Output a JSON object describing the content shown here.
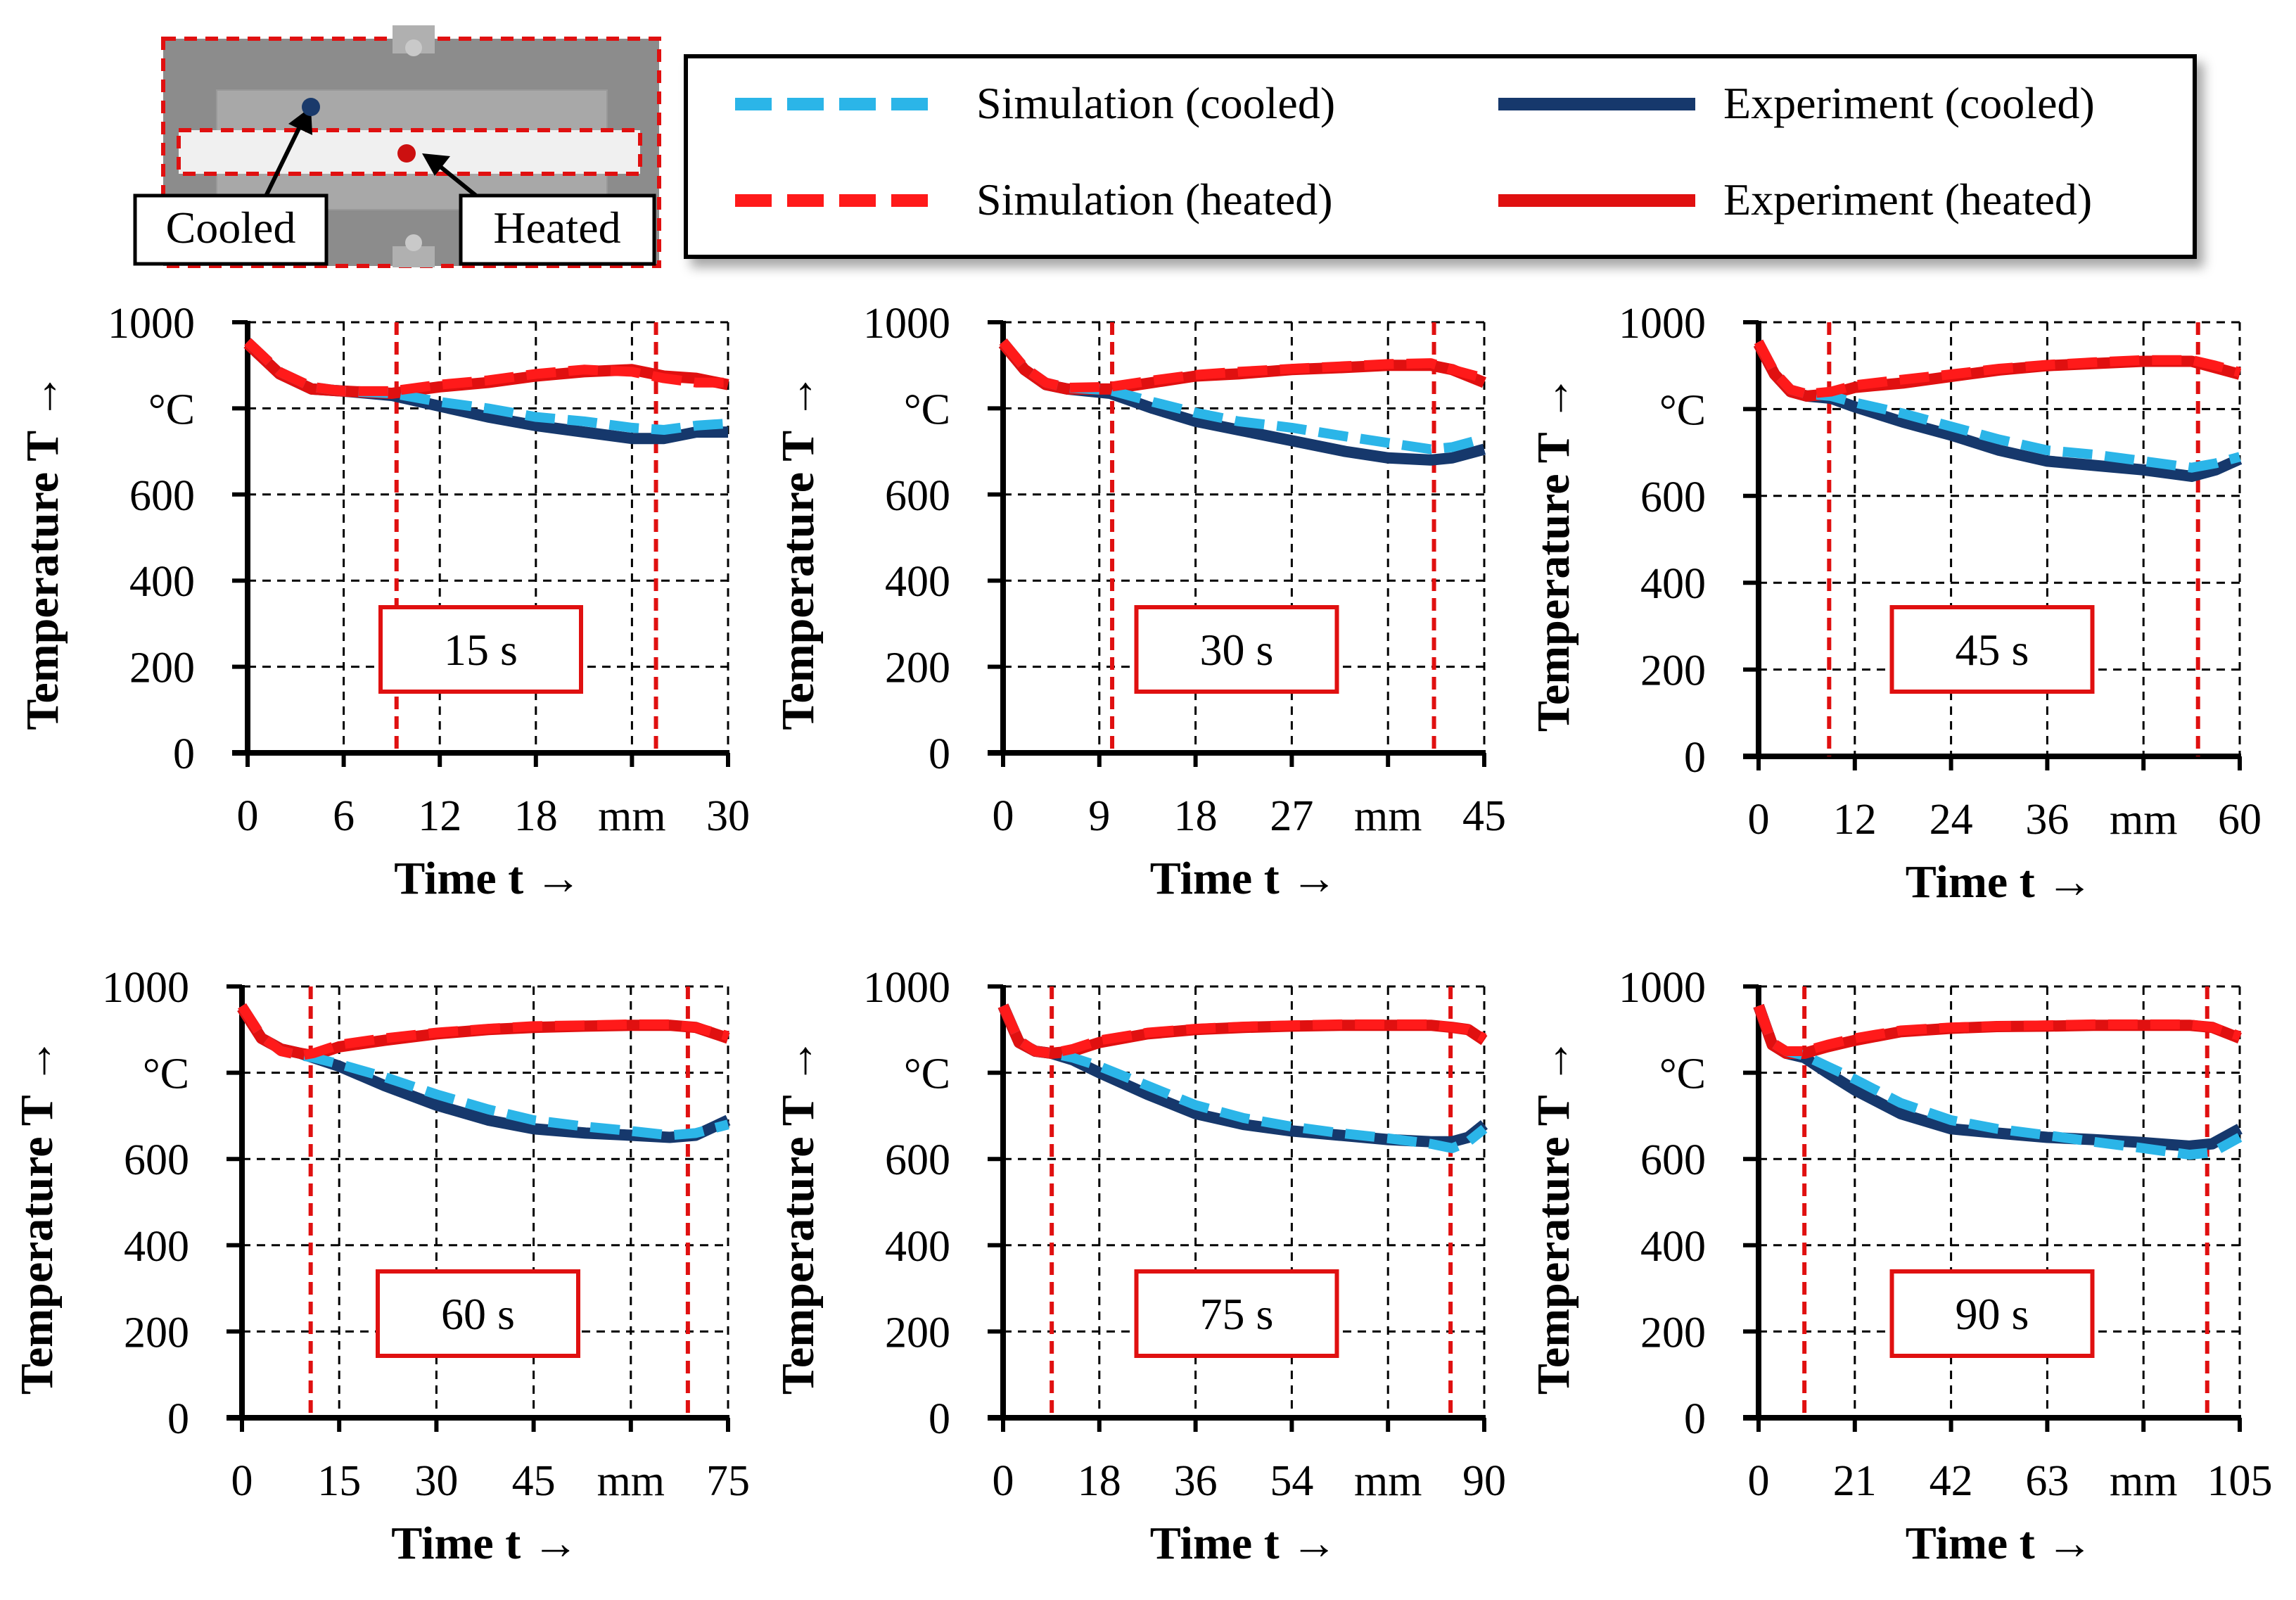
{
  "inset": {
    "cooled_label": "Cooled",
    "heated_label": "Heated",
    "cooled_color": "#1a3a6b",
    "heated_color": "#cc1010"
  },
  "legend": {
    "sim_cooled": "Simulation (cooled)",
    "exp_cooled": "Experiment (cooled)",
    "sim_heated": "Simulation (heated)",
    "exp_heated": "Experiment (heated)",
    "colors": {
      "sim_cooled": "#2bb5e8",
      "exp_cooled": "#16386c",
      "sim_heated": "#ff1a1a",
      "exp_heated": "#e01010",
      "marker": "#e01010"
    }
  },
  "chart_data": [
    {
      "type": "line",
      "title": "15 s",
      "xlabel": "Time t →",
      "ylabel": "Temperature T →",
      "y_unit": "°C",
      "x_unit": "mm",
      "xlim": [
        0,
        30
      ],
      "ylim": [
        0,
        1000
      ],
      "xticks": [
        "0",
        "6",
        "12",
        "18",
        "mm",
        "30"
      ],
      "yticks": [
        "0",
        "200",
        "400",
        "600",
        "°C",
        "1000"
      ],
      "markers": [
        9.3,
        25.5
      ],
      "series": [
        {
          "name": "Experiment (cooled)",
          "x": [
            0,
            2,
            4,
            6,
            9,
            12,
            15,
            18,
            21,
            24,
            26,
            28,
            30
          ],
          "y": [
            950,
            880,
            845,
            840,
            830,
            805,
            780,
            760,
            745,
            730,
            730,
            745,
            745
          ]
        },
        {
          "name": "Experiment (heated)",
          "x": [
            0,
            2,
            4,
            6,
            9,
            12,
            15,
            18,
            21,
            24,
            26,
            28,
            30
          ],
          "y": [
            950,
            880,
            845,
            840,
            835,
            850,
            860,
            875,
            885,
            890,
            875,
            870,
            855
          ]
        },
        {
          "name": "Simulation (cooled)",
          "x": [
            0,
            2,
            4,
            6,
            9,
            12,
            15,
            18,
            21,
            24,
            26,
            28,
            30
          ],
          "y": [
            955,
            885,
            850,
            840,
            835,
            815,
            800,
            780,
            770,
            755,
            750,
            760,
            765
          ]
        },
        {
          "name": "Simulation (heated)",
          "x": [
            0,
            2,
            4,
            6,
            9,
            12,
            15,
            18,
            21,
            24,
            26,
            28,
            30
          ],
          "y": [
            955,
            885,
            850,
            840,
            840,
            855,
            865,
            880,
            890,
            885,
            870,
            860,
            860
          ]
        }
      ]
    },
    {
      "type": "line",
      "title": "30 s",
      "xlabel": "Time t →",
      "ylabel": "Temperature T →",
      "y_unit": "°C",
      "x_unit": "mm",
      "xlim": [
        0,
        45
      ],
      "ylim": [
        0,
        1000
      ],
      "xticks": [
        "0",
        "9",
        "18",
        "27",
        "mm",
        "45"
      ],
      "yticks": [
        "0",
        "200",
        "400",
        "600",
        "°C",
        "1000"
      ],
      "markers": [
        10.2,
        40.3
      ],
      "series": [
        {
          "name": "Experiment (cooled)",
          "x": [
            0,
            2,
            4,
            6,
            10,
            14,
            18,
            22,
            27,
            32,
            36,
            40,
            42,
            45
          ],
          "y": [
            950,
            890,
            855,
            845,
            835,
            800,
            770,
            750,
            725,
            700,
            685,
            680,
            685,
            705
          ]
        },
        {
          "name": "Experiment (heated)",
          "x": [
            0,
            2,
            4,
            6,
            10,
            14,
            18,
            22,
            27,
            32,
            36,
            40,
            42,
            45
          ],
          "y": [
            950,
            890,
            855,
            845,
            845,
            860,
            875,
            880,
            890,
            895,
            900,
            900,
            890,
            860
          ]
        },
        {
          "name": "Simulation (cooled)",
          "x": [
            0,
            2,
            4,
            6,
            10,
            14,
            18,
            22,
            27,
            32,
            36,
            40,
            42,
            45
          ],
          "y": [
            955,
            895,
            860,
            848,
            842,
            815,
            790,
            770,
            755,
            735,
            720,
            705,
            710,
            730
          ]
        },
        {
          "name": "Simulation (heated)",
          "x": [
            0,
            2,
            4,
            6,
            10,
            14,
            18,
            22,
            27,
            32,
            36,
            40,
            42,
            45
          ],
          "y": [
            955,
            895,
            860,
            848,
            850,
            865,
            878,
            885,
            892,
            898,
            903,
            905,
            890,
            870
          ]
        }
      ]
    },
    {
      "type": "line",
      "title": "45 s",
      "xlabel": "Time t →",
      "ylabel": "Temperature T →",
      "y_unit": "°C",
      "x_unit": "mm",
      "xlim": [
        0,
        60
      ],
      "ylim": [
        0,
        1000
      ],
      "xticks": [
        "0",
        "12",
        "24",
        "36",
        "mm",
        "60"
      ],
      "yticks": [
        "0",
        "200",
        "400",
        "600",
        "°C",
        "1000"
      ],
      "markers": [
        8.8,
        54.8
      ],
      "series": [
        {
          "name": "Experiment (cooled)",
          "x": [
            0,
            2,
            4,
            6,
            9,
            12,
            18,
            24,
            30,
            36,
            42,
            48,
            54,
            57,
            60
          ],
          "y": [
            950,
            880,
            840,
            830,
            825,
            805,
            770,
            740,
            705,
            680,
            670,
            660,
            645,
            660,
            685
          ]
        },
        {
          "name": "Experiment (heated)",
          "x": [
            0,
            2,
            4,
            6,
            9,
            12,
            18,
            24,
            30,
            36,
            42,
            48,
            54,
            57,
            60
          ],
          "y": [
            950,
            880,
            840,
            830,
            835,
            850,
            860,
            875,
            890,
            900,
            905,
            910,
            910,
            895,
            880
          ]
        },
        {
          "name": "Simulation (cooled)",
          "x": [
            0,
            2,
            4,
            6,
            9,
            12,
            18,
            24,
            30,
            36,
            42,
            48,
            54,
            57,
            60
          ],
          "y": [
            955,
            885,
            845,
            835,
            830,
            815,
            790,
            760,
            730,
            705,
            695,
            680,
            665,
            675,
            690
          ]
        },
        {
          "name": "Simulation (heated)",
          "x": [
            0,
            2,
            4,
            6,
            9,
            12,
            18,
            24,
            30,
            36,
            42,
            48,
            54,
            57,
            60
          ],
          "y": [
            955,
            885,
            845,
            835,
            840,
            855,
            868,
            880,
            893,
            902,
            908,
            913,
            913,
            900,
            885
          ]
        }
      ]
    },
    {
      "type": "line",
      "title": "60 s",
      "xlabel": "Time t →",
      "ylabel": "Temperature T →",
      "y_unit": "°C",
      "x_unit": "mm",
      "xlim": [
        0,
        75
      ],
      "ylim": [
        0,
        1000
      ],
      "xticks": [
        "0",
        "15",
        "30",
        "45",
        "mm",
        "75"
      ],
      "yticks": [
        "0",
        "200",
        "400",
        "600",
        "°C",
        "1000"
      ],
      "markers": [
        10.6,
        68.8
      ],
      "series": [
        {
          "name": "Experiment (cooled)",
          "x": [
            0,
            3,
            6,
            9,
            11,
            15,
            22,
            30,
            38,
            45,
            53,
            60,
            66,
            70,
            75
          ],
          "y": [
            950,
            880,
            855,
            845,
            835,
            815,
            770,
            725,
            690,
            670,
            660,
            655,
            650,
            655,
            690
          ]
        },
        {
          "name": "Experiment (heated)",
          "x": [
            0,
            3,
            6,
            9,
            11,
            15,
            22,
            30,
            38,
            45,
            53,
            60,
            66,
            70,
            75
          ],
          "y": [
            950,
            880,
            855,
            845,
            840,
            860,
            875,
            890,
            900,
            905,
            908,
            910,
            910,
            905,
            880
          ]
        },
        {
          "name": "Simulation (cooled)",
          "x": [
            0,
            3,
            6,
            9,
            11,
            15,
            22,
            30,
            38,
            45,
            53,
            60,
            66,
            70,
            75
          ],
          "y": [
            955,
            885,
            850,
            840,
            835,
            820,
            790,
            750,
            715,
            690,
            675,
            665,
            655,
            660,
            680
          ]
        },
        {
          "name": "Simulation (heated)",
          "x": [
            0,
            3,
            6,
            9,
            11,
            15,
            22,
            30,
            38,
            45,
            53,
            60,
            66,
            70,
            75
          ],
          "y": [
            955,
            885,
            850,
            840,
            845,
            865,
            880,
            893,
            902,
            908,
            910,
            912,
            912,
            905,
            885
          ]
        }
      ]
    },
    {
      "type": "line",
      "title": "75 s",
      "xlabel": "Time t →",
      "ylabel": "Temperature T →",
      "y_unit": "°C",
      "x_unit": "mm",
      "xlim": [
        0,
        90
      ],
      "ylim": [
        0,
        1000
      ],
      "xticks": [
        "0",
        "18",
        "36",
        "54",
        "mm",
        "90"
      ],
      "yticks": [
        "0",
        "200",
        "400",
        "600",
        "°C",
        "1000"
      ],
      "markers": [
        9.1,
        83.7
      ],
      "series": [
        {
          "name": "Experiment (cooled)",
          "x": [
            0,
            3,
            6,
            9,
            13,
            18,
            27,
            36,
            45,
            54,
            63,
            72,
            80,
            84,
            87,
            90
          ],
          "y": [
            955,
            870,
            850,
            845,
            830,
            800,
            750,
            705,
            680,
            665,
            655,
            645,
            640,
            640,
            650,
            680
          ]
        },
        {
          "name": "Experiment (heated)",
          "x": [
            0,
            3,
            6,
            9,
            13,
            18,
            27,
            36,
            45,
            54,
            63,
            72,
            80,
            84,
            87,
            90
          ],
          "y": [
            955,
            870,
            850,
            845,
            850,
            870,
            890,
            900,
            905,
            908,
            910,
            910,
            910,
            905,
            900,
            875
          ]
        },
        {
          "name": "Simulation (cooled)",
          "x": [
            0,
            3,
            6,
            9,
            13,
            18,
            27,
            36,
            45,
            54,
            63,
            72,
            80,
            84,
            87,
            90
          ],
          "y": [
            955,
            875,
            850,
            845,
            835,
            815,
            770,
            725,
            695,
            675,
            660,
            648,
            635,
            625,
            640,
            670
          ]
        },
        {
          "name": "Simulation (heated)",
          "x": [
            0,
            3,
            6,
            9,
            13,
            18,
            27,
            36,
            45,
            54,
            63,
            72,
            80,
            84,
            87,
            90
          ],
          "y": [
            955,
            875,
            850,
            845,
            855,
            875,
            893,
            902,
            907,
            910,
            912,
            912,
            912,
            905,
            900,
            880
          ]
        }
      ]
    },
    {
      "type": "line",
      "title": "90 s",
      "xlabel": "Time t →",
      "ylabel": "Temperature T →",
      "y_unit": "°C",
      "x_unit": "mm",
      "xlim": [
        0,
        105
      ],
      "ylim": [
        0,
        1000
      ],
      "xticks": [
        "0",
        "21",
        "42",
        "63",
        "mm",
        "105"
      ],
      "yticks": [
        "0",
        "200",
        "400",
        "600",
        "°C",
        "1000"
      ],
      "markers": [
        10.0,
        97.9
      ],
      "series": [
        {
          "name": "Experiment (cooled)",
          "x": [
            0,
            3,
            6,
            10,
            15,
            21,
            31,
            42,
            52,
            63,
            73,
            84,
            94,
            99,
            105
          ],
          "y": [
            955,
            865,
            845,
            835,
            800,
            760,
            705,
            670,
            660,
            650,
            645,
            638,
            630,
            635,
            670
          ]
        },
        {
          "name": "Experiment (heated)",
          "x": [
            0,
            3,
            6,
            10,
            15,
            21,
            31,
            42,
            52,
            63,
            73,
            84,
            94,
            99,
            105
          ],
          "y": [
            955,
            865,
            845,
            845,
            860,
            875,
            895,
            903,
            907,
            908,
            910,
            910,
            910,
            905,
            880
          ]
        },
        {
          "name": "Simulation (cooled)",
          "x": [
            0,
            3,
            6,
            10,
            15,
            21,
            31,
            42,
            52,
            63,
            73,
            84,
            94,
            99,
            105
          ],
          "y": [
            955,
            870,
            850,
            840,
            815,
            785,
            730,
            690,
            670,
            655,
            640,
            625,
            610,
            615,
            650
          ]
        },
        {
          "name": "Simulation (heated)",
          "x": [
            0,
            3,
            6,
            10,
            15,
            21,
            31,
            42,
            52,
            63,
            73,
            84,
            94,
            99,
            105
          ],
          "y": [
            955,
            870,
            850,
            850,
            865,
            880,
            898,
            905,
            908,
            910,
            912,
            912,
            912,
            905,
            885
          ]
        }
      ]
    }
  ]
}
